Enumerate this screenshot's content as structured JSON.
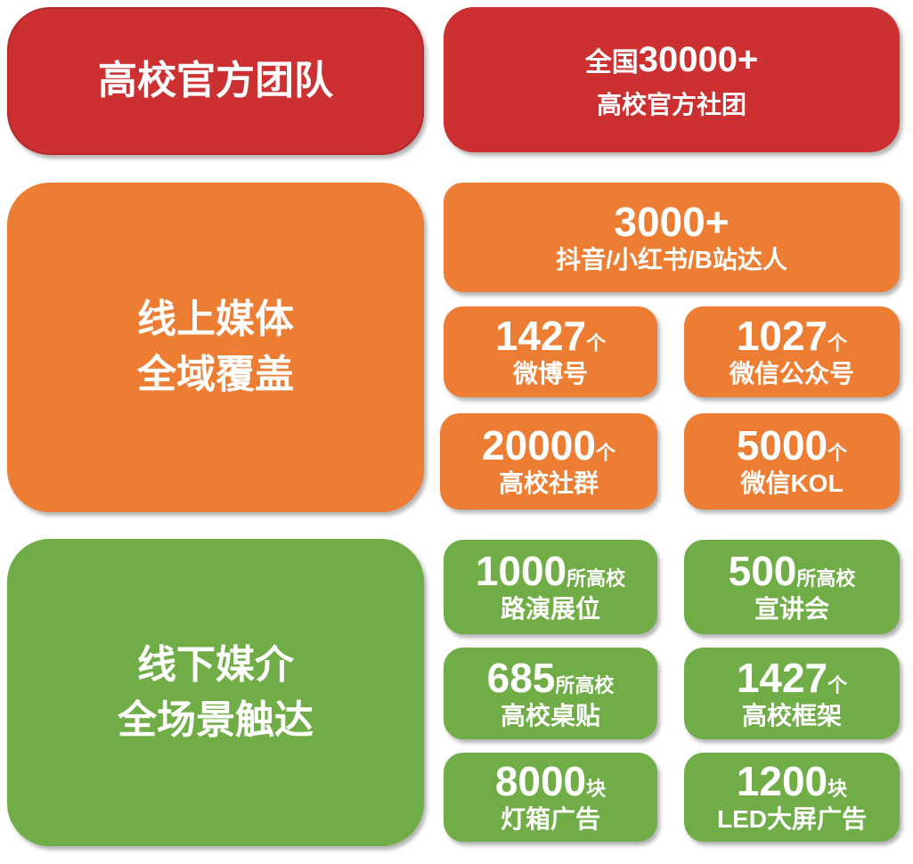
{
  "colors": {
    "red": "#cc3030",
    "orange": "#ec7d32",
    "green": "#70ad47"
  },
  "team": {
    "title": "高校官方团队",
    "stat": {
      "prefix": "全国",
      "number": "30000+",
      "label": "高校官方社团"
    }
  },
  "online": {
    "title_line1": "线上媒体",
    "title_line2": "全域覆盖",
    "headline": {
      "number": "3000+",
      "label": "抖音/小红书/B站达人"
    },
    "items": [
      {
        "number": "1427",
        "unit": "个",
        "label": "微博号"
      },
      {
        "number": "1027",
        "unit": "个",
        "label": "微信公众号"
      },
      {
        "number": "20000",
        "unit": "个",
        "label": "高校社群"
      },
      {
        "number": "5000",
        "unit": "个",
        "label": "微信KOL"
      }
    ]
  },
  "offline": {
    "title_line1": "线下媒介",
    "title_line2": "全场景触达",
    "items": [
      {
        "number": "1000",
        "unit": "所高校",
        "label": "路演展位"
      },
      {
        "number": "500",
        "unit": "所高校",
        "label": "宣讲会"
      },
      {
        "number": "685",
        "unit": "所高校",
        "label": "高校桌贴"
      },
      {
        "number": "1427",
        "unit": "个",
        "label": "高校框架"
      },
      {
        "number": "8000",
        "unit": "块",
        "label": "灯箱广告"
      },
      {
        "number": "1200",
        "unit": "块",
        "label": "LED大屏广告"
      }
    ]
  }
}
